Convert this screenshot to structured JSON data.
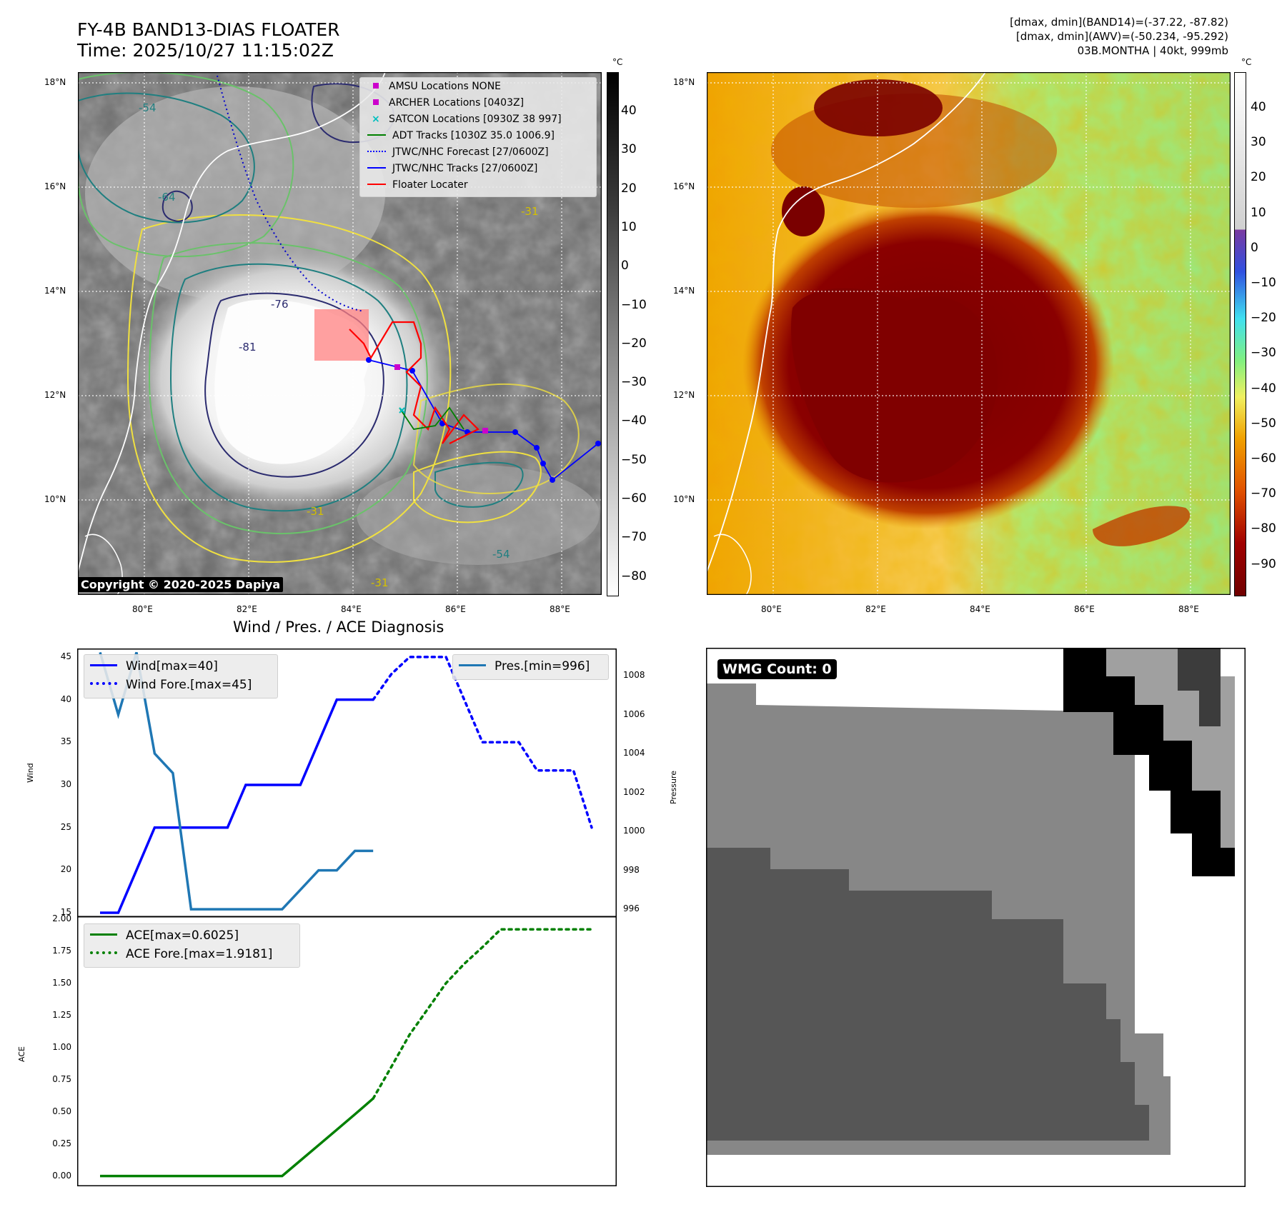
{
  "header": {
    "title_line1": "FY-4B BAND13-DIAS FLOATER",
    "title_line2": "Time: 2025/10/27 11:15:02Z",
    "right_line1": "[dmax, dmin](BAND14)=(-37.22, -87.82)",
    "right_line2": "[dmax, dmin](AWV)=(-50.234, -95.292)",
    "right_line3": "03B.MONTHA | 40kt, 999mb"
  },
  "copyright": "Copyright © 2020-2025 Dapiya",
  "map": {
    "lat_labels": [
      "18°N",
      "16°N",
      "14°N",
      "12°N",
      "10°N"
    ],
    "lon_labels": [
      "80°E",
      "82°E",
      "84°E",
      "86°E",
      "88°E"
    ],
    "contour_labels": [
      "-31",
      "-54",
      "-64",
      "-76",
      "-81"
    ],
    "legend": [
      {
        "label": "AMSU Locations NONE",
        "color": "#cc00cc"
      },
      {
        "label": "ARCHER Locations [0403Z]",
        "color": "#cc00cc"
      },
      {
        "label": "SATCON Locations [0930Z 38 997]",
        "color": "#00bfbf"
      },
      {
        "label": "ADT Tracks [1030Z 35.0 1006.9]",
        "color": "#008000"
      },
      {
        "label": "JTWC/NHC Forecast [27/0600Z]",
        "color": "#0000ff"
      },
      {
        "label": "JTWC/NHC Tracks [27/0600Z]",
        "color": "#0000ff"
      },
      {
        "label": "Floater Locater",
        "color": "#ff0000"
      }
    ]
  },
  "colorbar_left": {
    "unit": "°C",
    "ticks": [
      "40",
      "30",
      "20",
      "10",
      "0",
      "−10",
      "−20",
      "−30",
      "−40",
      "−50",
      "−60",
      "−70",
      "−80"
    ]
  },
  "colorbar_right": {
    "unit": "°C",
    "ticks": [
      "40",
      "30",
      "20",
      "10",
      "0",
      "−10",
      "−20",
      "−30",
      "−40",
      "−50",
      "−60",
      "−70",
      "−80",
      "−90"
    ]
  },
  "diagnosis": {
    "title": "Wind / Pres. / ACE Diagnosis",
    "wind_label": "Wind",
    "pressure_label": "Pressure",
    "ace_label": "ACE",
    "wind_ticks": [
      "45",
      "40",
      "35",
      "30",
      "25",
      "20",
      "15"
    ],
    "pres_ticks": [
      "1008",
      "1006",
      "1004",
      "1002",
      "1000",
      "998",
      "996"
    ],
    "ace_ticks": [
      "2.00",
      "1.75",
      "1.50",
      "1.25",
      "1.00",
      "0.75",
      "0.50",
      "0.25",
      "0.00"
    ],
    "legend": {
      "wind": "Wind[max=40]",
      "wind_fore": "Wind Fore.[max=45]",
      "pres": "Pres.[min=996]",
      "ace": "ACE[max=0.6025]",
      "ace_fore": "ACE Fore.[max=1.9181]"
    }
  },
  "wmg": {
    "label": "WMG Count: 0"
  },
  "chart_data": [
    {
      "type": "line",
      "title": "Wind / Pres. / ACE Diagnosis",
      "ylabel": "Wind",
      "ylim": [
        14.5,
        46
      ],
      "x": [
        0,
        1,
        2,
        3,
        4,
        5,
        6,
        7,
        8,
        9,
        10,
        11,
        12,
        13,
        14,
        15,
        16,
        17,
        18,
        19,
        20,
        21,
        22,
        23,
        24,
        25,
        26,
        27
      ],
      "series": [
        {
          "name": "Wind[max=40]",
          "style": "solid",
          "color": "#0000ff",
          "x": [
            0,
            1,
            2,
            3,
            4,
            5,
            6,
            7,
            8,
            9,
            10,
            11,
            12,
            13,
            14,
            15
          ],
          "values": [
            15,
            15,
            20,
            25,
            25,
            25,
            25,
            25,
            30,
            30,
            30,
            30,
            35,
            40,
            40,
            40
          ]
        },
        {
          "name": "Wind Fore.[max=45]",
          "style": "dotted",
          "color": "#0000ff",
          "x": [
            15,
            16,
            17,
            18,
            19,
            20,
            21,
            22,
            23,
            24,
            25,
            26,
            27
          ],
          "values": [
            40,
            43,
            45,
            45,
            45,
            40,
            35,
            35,
            35,
            31.7,
            31.7,
            31.7,
            25
          ]
        }
      ]
    },
    {
      "type": "line",
      "ylabel": "Pressure",
      "ylim": [
        995.6,
        1009.4
      ],
      "series": [
        {
          "name": "Pres.[min=996]",
          "style": "solid",
          "color": "#1f77b4",
          "x": [
            0,
            1,
            2,
            3,
            4,
            5,
            6,
            7,
            8,
            9,
            10,
            11,
            12,
            13,
            14,
            15
          ],
          "values": [
            1009.2,
            1006,
            1009.2,
            1004,
            1003,
            996,
            996,
            996,
            996,
            996,
            996,
            997,
            998,
            998,
            999,
            999
          ]
        }
      ]
    },
    {
      "type": "line",
      "ylabel": "ACE",
      "ylim": [
        -0.08,
        2.02
      ],
      "series": [
        {
          "name": "ACE[max=0.6025]",
          "style": "solid",
          "color": "#008000",
          "x": [
            0,
            1,
            2,
            3,
            4,
            5,
            6,
            7,
            8,
            9,
            10,
            11,
            12,
            13,
            14,
            15
          ],
          "values": [
            0,
            0,
            0,
            0,
            0,
            0,
            0,
            0,
            0,
            0,
            0,
            0.12,
            0.24,
            0.36,
            0.48,
            0.6025
          ]
        },
        {
          "name": "ACE Fore.[max=1.9181]",
          "style": "dotted",
          "color": "#008000",
          "x": [
            15,
            16,
            17,
            18,
            19,
            20,
            21,
            22,
            23,
            24,
            25,
            26,
            27
          ],
          "values": [
            0.6025,
            0.85,
            1.1,
            1.3,
            1.5,
            1.65,
            1.78,
            1.9181,
            1.9181,
            1.9181,
            1.9181,
            1.9181,
            1.9181
          ]
        }
      ]
    }
  ]
}
